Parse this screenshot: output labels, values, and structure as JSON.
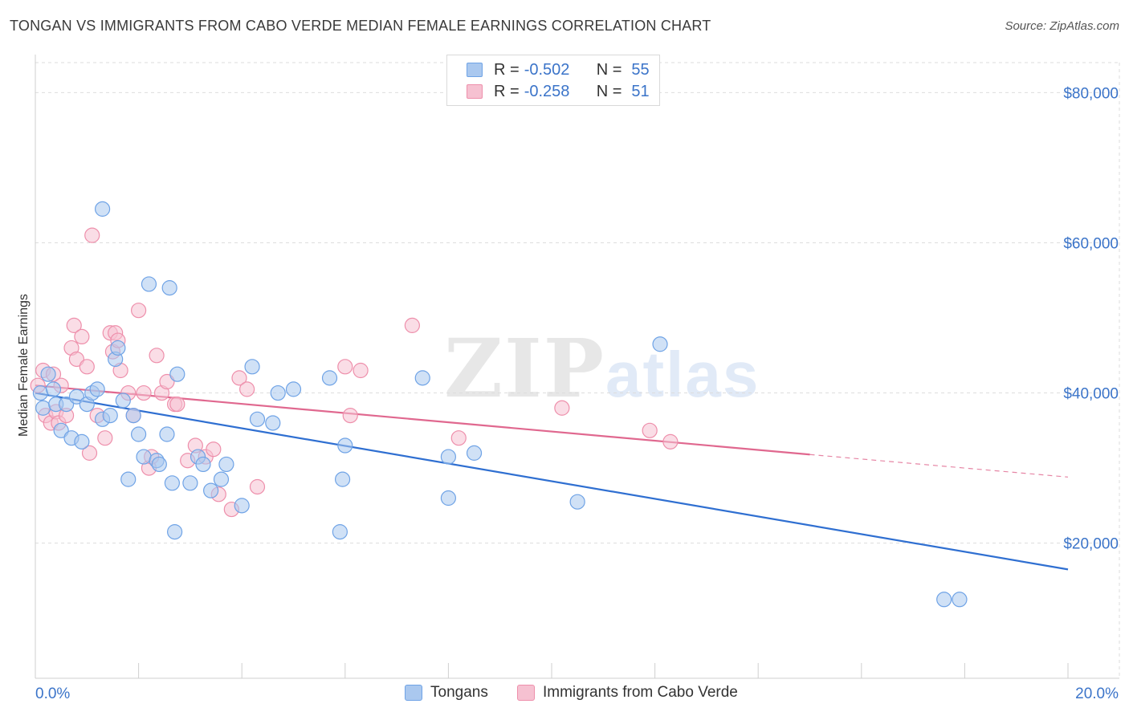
{
  "header": {
    "title": "TONGAN VS IMMIGRANTS FROM CABO VERDE MEDIAN FEMALE EARNINGS CORRELATION CHART",
    "source": "Source: ZipAtlas.com"
  },
  "watermark": {
    "zip": "ZIP",
    "atlas": "atlas"
  },
  "legend": {
    "rows": [
      {
        "r_label": "R =",
        "r_value": "-0.502",
        "n_label": "N =",
        "n_value": "55",
        "color": "#6fa3e6"
      },
      {
        "r_label": "R =",
        "r_value": "-0.258",
        "n_label": "N =",
        "n_value": "51",
        "color": "#ee8fab"
      }
    ]
  },
  "bottom_legend": {
    "tongans": "Tongans",
    "caboverde": "Immigrants from Cabo Verde"
  },
  "colors": {
    "blue_fill": "#aac8ef",
    "blue_stroke": "#6fa3e6",
    "blue_line": "#2f6fd1",
    "pink_fill": "#f6c1d1",
    "pink_stroke": "#ee8fab",
    "pink_line": "#e0688f",
    "tick_label": "#3b74c9",
    "grid": "#dddddd"
  },
  "chart_data": {
    "type": "scatter",
    "title": "TONGAN VS IMMIGRANTS FROM CABO VERDE MEDIAN FEMALE EARNINGS CORRELATION CHART",
    "xlabel": "",
    "ylabel": "Median Female Earnings",
    "xlim": [
      0,
      20
    ],
    "ylim": [
      2000,
      84000
    ],
    "x_tick_labels": [
      "0.0%",
      "20.0%"
    ],
    "y_ticks": [
      20000,
      40000,
      60000,
      80000
    ],
    "y_tick_labels": [
      "$20,000",
      "$40,000",
      "$60,000",
      "$80,000"
    ],
    "grid": true,
    "legend_position": "top-center",
    "series": [
      {
        "name": "Tongans",
        "points": [
          [
            0.1,
            40000
          ],
          [
            0.15,
            38000
          ],
          [
            0.25,
            42500
          ],
          [
            0.35,
            40500
          ],
          [
            0.4,
            38500
          ],
          [
            0.5,
            35000
          ],
          [
            0.6,
            38500
          ],
          [
            0.7,
            34000
          ],
          [
            0.8,
            39500
          ],
          [
            0.9,
            33500
          ],
          [
            1.0,
            38500
          ],
          [
            1.1,
            40000
          ],
          [
            1.2,
            40500
          ],
          [
            1.3,
            36500
          ],
          [
            1.45,
            37000
          ],
          [
            1.55,
            44500
          ],
          [
            1.6,
            46000
          ],
          [
            1.7,
            39000
          ],
          [
            1.8,
            28500
          ],
          [
            1.9,
            37000
          ],
          [
            2.0,
            34500
          ],
          [
            2.1,
            31500
          ],
          [
            2.2,
            54500
          ],
          [
            2.35,
            31000
          ],
          [
            2.4,
            30500
          ],
          [
            2.55,
            34500
          ],
          [
            2.6,
            54000
          ],
          [
            2.65,
            28000
          ],
          [
            2.7,
            21500
          ],
          [
            2.75,
            42500
          ],
          [
            3.0,
            28000
          ],
          [
            3.15,
            31500
          ],
          [
            3.25,
            30500
          ],
          [
            3.4,
            27000
          ],
          [
            3.6,
            28500
          ],
          [
            3.7,
            30500
          ],
          [
            4.0,
            25000
          ],
          [
            4.2,
            43500
          ],
          [
            4.3,
            36500
          ],
          [
            4.6,
            36000
          ],
          [
            4.7,
            40000
          ],
          [
            5.0,
            40500
          ],
          [
            5.7,
            42000
          ],
          [
            5.9,
            21500
          ],
          [
            5.95,
            28500
          ],
          [
            6.0,
            33000
          ],
          [
            7.5,
            42000
          ],
          [
            8.0,
            31500
          ],
          [
            8.0,
            26000
          ],
          [
            8.5,
            32000
          ],
          [
            10.5,
            25500
          ],
          [
            1.3,
            64500
          ],
          [
            12.1,
            46500
          ],
          [
            17.9,
            12500
          ],
          [
            17.6,
            12500
          ]
        ],
        "trend": {
          "x": [
            0,
            20
          ],
          "y": [
            40000,
            16500
          ]
        }
      },
      {
        "name": "Immigrants from Cabo Verde",
        "points": [
          [
            0.05,
            41000
          ],
          [
            0.15,
            43000
          ],
          [
            0.2,
            37000
          ],
          [
            0.3,
            36000
          ],
          [
            0.35,
            42500
          ],
          [
            0.4,
            37500
          ],
          [
            0.45,
            36000
          ],
          [
            0.5,
            41000
          ],
          [
            0.6,
            37000
          ],
          [
            0.7,
            46000
          ],
          [
            0.75,
            49000
          ],
          [
            0.8,
            44500
          ],
          [
            0.9,
            47500
          ],
          [
            1.0,
            43500
          ],
          [
            1.05,
            32000
          ],
          [
            1.1,
            61000
          ],
          [
            1.2,
            37000
          ],
          [
            1.35,
            34000
          ],
          [
            1.45,
            48000
          ],
          [
            1.5,
            45500
          ],
          [
            1.55,
            48000
          ],
          [
            1.6,
            47000
          ],
          [
            1.65,
            43000
          ],
          [
            1.8,
            40000
          ],
          [
            1.9,
            37000
          ],
          [
            2.0,
            51000
          ],
          [
            2.1,
            40000
          ],
          [
            2.2,
            30000
          ],
          [
            2.25,
            31500
          ],
          [
            2.35,
            45000
          ],
          [
            2.45,
            40000
          ],
          [
            2.55,
            41500
          ],
          [
            2.7,
            38500
          ],
          [
            2.75,
            38500
          ],
          [
            2.95,
            31000
          ],
          [
            3.1,
            33000
          ],
          [
            3.3,
            31500
          ],
          [
            3.45,
            32500
          ],
          [
            3.55,
            26500
          ],
          [
            3.8,
            24500
          ],
          [
            3.95,
            42000
          ],
          [
            4.1,
            40500
          ],
          [
            4.3,
            27500
          ],
          [
            6.0,
            43500
          ],
          [
            6.1,
            37000
          ],
          [
            6.3,
            43000
          ],
          [
            7.3,
            49000
          ],
          [
            8.2,
            34000
          ],
          [
            10.2,
            38000
          ],
          [
            11.9,
            35000
          ],
          [
            12.3,
            33500
          ]
        ],
        "trend": {
          "x": [
            0,
            15
          ],
          "y": [
            41000,
            31800
          ]
        },
        "trend_dashed": {
          "x": [
            15,
            20
          ],
          "y": [
            31800,
            28800
          ]
        }
      }
    ]
  }
}
